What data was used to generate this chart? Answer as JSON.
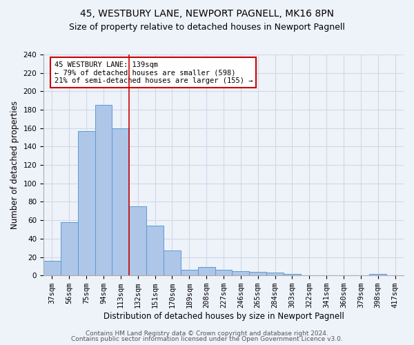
{
  "title": "45, WESTBURY LANE, NEWPORT PAGNELL, MK16 8PN",
  "subtitle": "Size of property relative to detached houses in Newport Pagnell",
  "xlabel": "Distribution of detached houses by size in Newport Pagnell",
  "ylabel": "Number of detached properties",
  "categories": [
    "37sqm",
    "56sqm",
    "75sqm",
    "94sqm",
    "113sqm",
    "132sqm",
    "151sqm",
    "170sqm",
    "189sqm",
    "208sqm",
    "227sqm",
    "246sqm",
    "265sqm",
    "284sqm",
    "303sqm",
    "322sqm",
    "341sqm",
    "360sqm",
    "379sqm",
    "398sqm",
    "417sqm"
  ],
  "values": [
    16,
    58,
    157,
    185,
    160,
    75,
    54,
    27,
    6,
    9,
    6,
    5,
    4,
    3,
    2,
    0,
    0,
    0,
    0,
    2,
    0
  ],
  "bar_color": "#aec6e8",
  "bar_edge_color": "#5b9bd5",
  "grid_color": "#d0d8e8",
  "background_color": "#eef2f9",
  "annotation_box_color": "#ffffff",
  "annotation_border_color": "#cc0000",
  "marker_line_color": "#cc0000",
  "annotation_line1": "45 WESTBURY LANE: 139sqm",
  "annotation_line2": "← 79% of detached houses are smaller (598)",
  "annotation_line3": "21% of semi-detached houses are larger (155) →",
  "ylim": [
    0,
    240
  ],
  "yticks": [
    0,
    20,
    40,
    60,
    80,
    100,
    120,
    140,
    160,
    180,
    200,
    220,
    240
  ],
  "marker_bar_index": 5,
  "title_fontsize": 10,
  "subtitle_fontsize": 9,
  "xlabel_fontsize": 8.5,
  "ylabel_fontsize": 8.5,
  "tick_fontsize": 7.5,
  "annotation_fontsize": 7.5,
  "footer_fontsize": 6.5,
  "footer1": "Contains HM Land Registry data © Crown copyright and database right 2024.",
  "footer2": "Contains public sector information licensed under the Open Government Licence v3.0."
}
